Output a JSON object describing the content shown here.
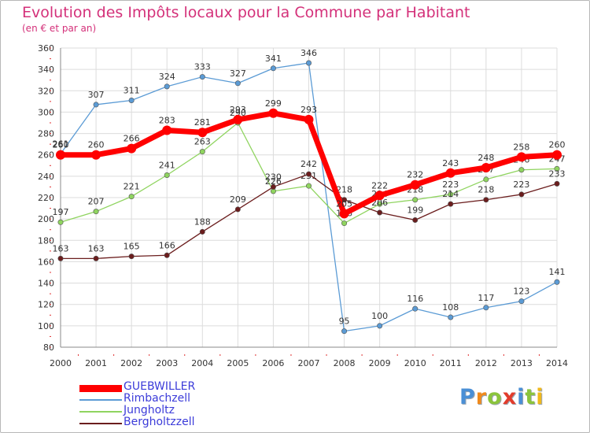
{
  "header": {
    "title": "Evolution des Impôts locaux pour la Commune par Habitant",
    "subtitle": "(en € et par an)"
  },
  "logo": {
    "letters": [
      "P",
      "r",
      "o",
      "x",
      "i",
      "t",
      "i"
    ],
    "colors": [
      "#4a8fd6",
      "#f08a1c",
      "#8bc43c",
      "#e23c2c",
      "#4a8fd6",
      "#8bc43c",
      "#f0b81c"
    ]
  },
  "chart_data": {
    "type": "line",
    "title": "Evolution des Impôts locaux pour la Commune par Habitant",
    "subtitle": "(en € et par an)",
    "xlabel": "",
    "ylabel": "",
    "x": [
      2000,
      2001,
      2002,
      2003,
      2004,
      2005,
      2006,
      2007,
      2008,
      2009,
      2010,
      2011,
      2012,
      2013,
      2014
    ],
    "ylim": [
      80,
      360
    ],
    "yticks": [
      80,
      100,
      120,
      140,
      160,
      180,
      200,
      220,
      240,
      260,
      280,
      300,
      320,
      340,
      360
    ],
    "grid": true,
    "legend_position": "bottom-left",
    "series": [
      {
        "name": "Rimbachzell",
        "color": "#5b9bd5",
        "values": [
          261,
          307,
          311,
          324,
          333,
          327,
          341,
          346,
          95,
          100,
          116,
          108,
          117,
          123,
          141
        ]
      },
      {
        "name": "Jungholtz",
        "color": "#8fd45f",
        "values": [
          197,
          207,
          221,
          241,
          263,
          290,
          226,
          231,
          196,
          214,
          218,
          223,
          237,
          246,
          247
        ]
      },
      {
        "name": "Bergholtzzell",
        "color": "#6b1d1d",
        "values": [
          163,
          163,
          165,
          166,
          188,
          209,
          230,
          242,
          218,
          206,
          199,
          214,
          218,
          223,
          233
        ]
      },
      {
        "name": "GUEBWILLER",
        "color": "#ff0000",
        "values": [
          260,
          260,
          266,
          283,
          281,
          293,
          299,
          293,
          205,
          222,
          232,
          243,
          248,
          258,
          260
        ]
      }
    ]
  }
}
